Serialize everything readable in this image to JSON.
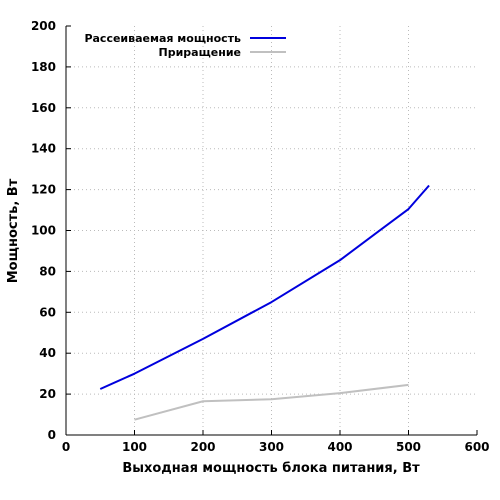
{
  "chart_data": {
    "type": "line",
    "xlabel": "Выходная мощность блока питания, Вт",
    "ylabel": "Мощность, Вт",
    "xlim": [
      0,
      600
    ],
    "ylim": [
      0,
      200
    ],
    "x_ticks": [
      "0",
      "100",
      "200",
      "300",
      "400",
      "500",
      "600"
    ],
    "y_ticks": [
      "0",
      "20",
      "40",
      "60",
      "80",
      "100",
      "120",
      "140",
      "160",
      "180",
      "200"
    ],
    "grid": true,
    "legend_position": "top-left",
    "series": [
      {
        "name": "Рассеиваемая мощность",
        "color": "#0000dd",
        "x": [
          50,
          100,
          200,
          300,
          400,
          500,
          530
        ],
        "y": [
          22.5,
          30,
          47,
          65,
          85.5,
          110.5,
          122
        ]
      },
      {
        "name": "Приращение",
        "color": "#c0c0c0",
        "x": [
          100,
          200,
          300,
          400,
          500
        ],
        "y": [
          7.5,
          16.5,
          17.5,
          20.5,
          24.5
        ]
      }
    ]
  }
}
